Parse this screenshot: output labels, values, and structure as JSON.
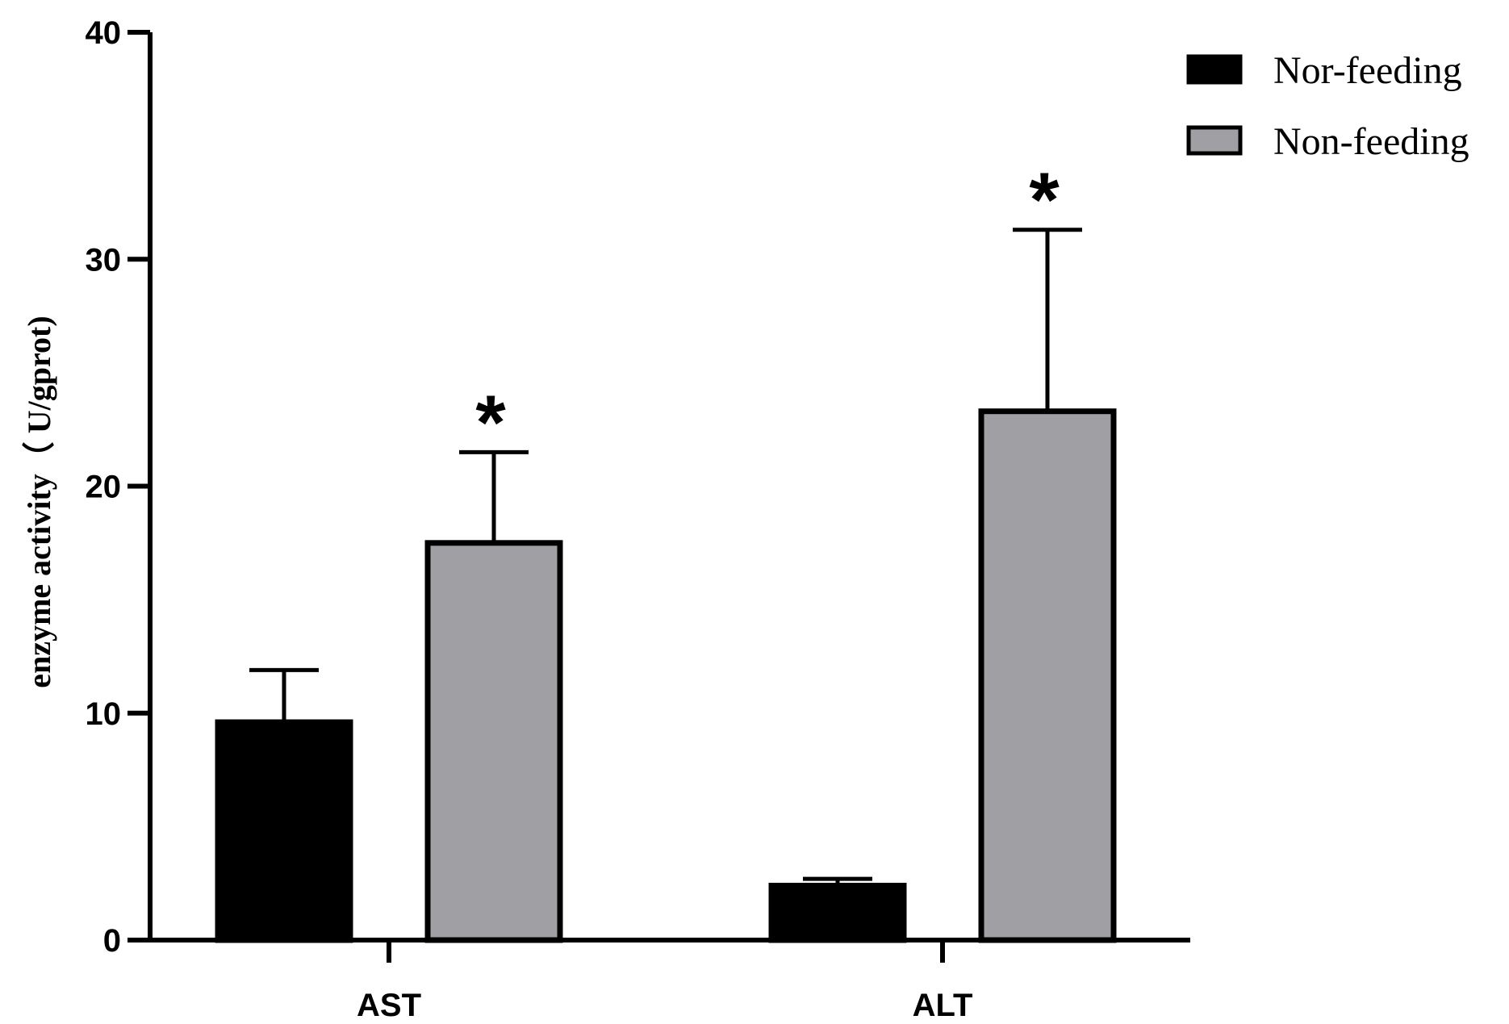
{
  "chart_data": {
    "type": "bar",
    "title": "",
    "xlabel": "",
    "ylabel": "enzyme activity（ U/gprot)",
    "ylim": [
      0,
      40
    ],
    "yticks": [
      "0",
      "10",
      "20",
      "30",
      "40"
    ],
    "categories": [
      "AST",
      "ALT"
    ],
    "series": [
      {
        "name": "Nor-feeding",
        "color": "#000000",
        "values": [
          9.6,
          2.4
        ],
        "errors": [
          2.3,
          0.3
        ],
        "significance": [
          "",
          ""
        ]
      },
      {
        "name": "Non-feeding",
        "color": "#a0a0a4",
        "values": [
          17.5,
          23.3
        ],
        "errors": [
          4.0,
          8.0
        ],
        "significance": [
          "*",
          "*"
        ]
      }
    ],
    "legend_position": "top-right",
    "grid": false
  }
}
